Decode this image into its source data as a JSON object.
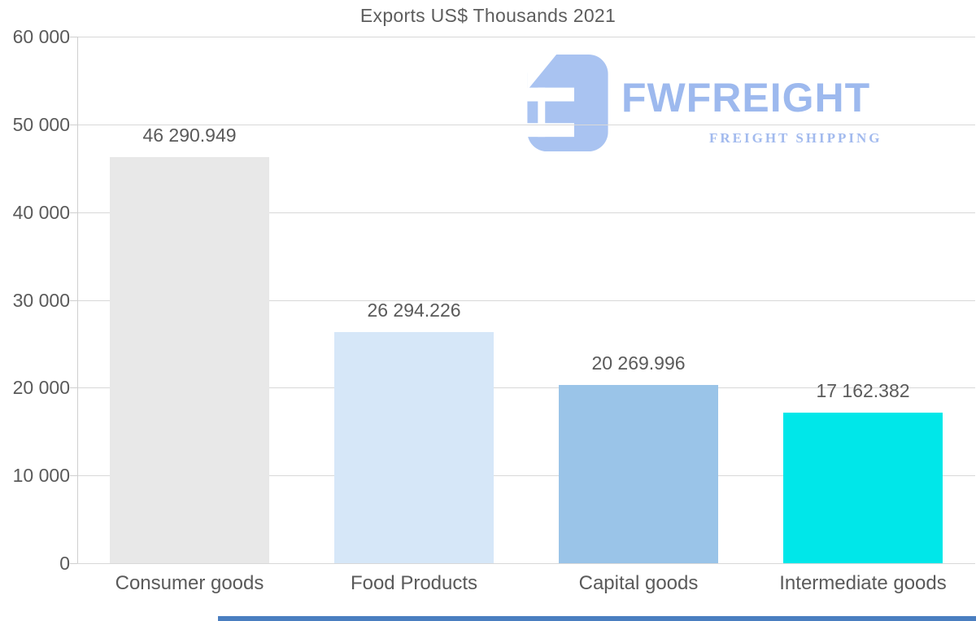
{
  "title": "Exports US$ Thousands 2021",
  "logo": {
    "brand": "FWFREIGHT",
    "tagline": "FREIGHT SHIPPING",
    "brand_color": "#9db9ee",
    "icon_color": "#a9c3f1"
  },
  "chart_data": {
    "type": "bar",
    "title": "Exports US$ Thousands 2021",
    "categories": [
      "Consumer goods",
      "Food Products",
      "Capital goods",
      "Intermediate goods"
    ],
    "values": [
      46290.949,
      26294.226,
      20269.996,
      17162.382
    ],
    "value_labels": [
      "46 290.949",
      "26 294.226",
      "20 269.996",
      "17 162.382"
    ],
    "bar_colors": [
      "#e8e8e8",
      "#d6e7f8",
      "#9ac4e8",
      "#00e7e9"
    ],
    "xlabel": "",
    "ylabel": "",
    "ylim": [
      0,
      60000
    ],
    "ytick_interval": 10000,
    "ytick_labels": [
      "0",
      "10 000",
      "20 000",
      "30 000",
      "40 000",
      "50 000",
      "60 000"
    ],
    "grid": "horizontal",
    "legend": "none",
    "text_color": "#5a5a5a",
    "grid_color": "#d8d8d8"
  },
  "bottom_strip_color": "#4a7ec0"
}
